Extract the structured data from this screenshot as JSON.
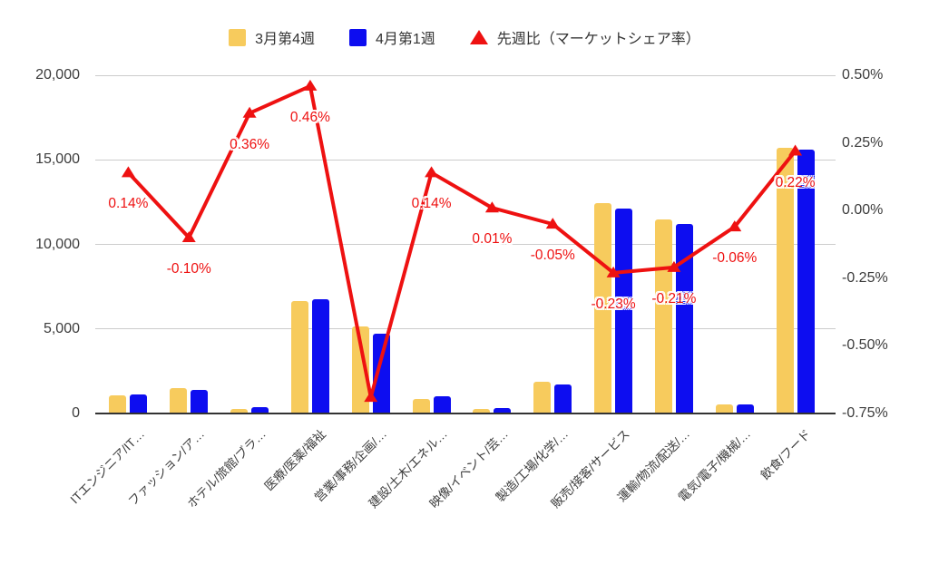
{
  "legend": {
    "items": [
      {
        "label": "3月第4週",
        "marker": "square",
        "color": "#F7CB5D"
      },
      {
        "label": "4月第1週",
        "marker": "square",
        "color": "#0D0DF0"
      },
      {
        "label": "先週比（マーケットシェア率）",
        "marker": "triangle",
        "color": "#EE1111"
      }
    ]
  },
  "chart_data": {
    "type": "bar",
    "subtype": "grouped-bars-with-line-combo",
    "categories": [
      "ITエンジニア/IT…",
      "ファッション/ア…",
      "ホテル/旅館/ブラ…",
      "医療/医薬/福祉",
      "営業/事務/企画/…",
      "建設/土木/エネル…",
      "映像/イベント/芸…",
      "製造/工場/化学/…",
      "販売/接客/サービス",
      "運輸/物流/配送/…",
      "電気/電子/機械/…",
      "飲食/フード"
    ],
    "series": [
      {
        "name": "3月第4週",
        "type": "bar",
        "axis": "left",
        "color": "#F7CB5D",
        "values": [
          1050,
          1500,
          250,
          6650,
          5150,
          850,
          250,
          1850,
          12450,
          11450,
          550,
          15700
        ]
      },
      {
        "name": "4月第1週",
        "type": "bar",
        "axis": "left",
        "color": "#0D0DF0",
        "values": [
          1100,
          1400,
          400,
          6750,
          4700,
          1000,
          300,
          1700,
          12100,
          11200,
          550,
          15600
        ]
      },
      {
        "name": "先週比（マーケットシェア率）",
        "type": "line",
        "axis": "right",
        "color": "#EE1111",
        "values": [
          0.14,
          -0.1,
          0.36,
          0.46,
          -0.69,
          0.14,
          0.01,
          -0.05,
          -0.23,
          -0.21,
          -0.06,
          0.22
        ],
        "point_labels": [
          "0.14%",
          "-0.10%",
          "0.36%",
          "0.46%",
          "",
          "0.14%",
          "0.01%",
          "-0.05%",
          "-0.23%",
          "-0.21%",
          "-0.06%",
          "0.22%"
        ]
      }
    ],
    "left_axis": {
      "tick_labels": [
        "20,000",
        "15,000",
        "10,000",
        "5,000",
        "0"
      ],
      "tick_values": [
        20000,
        15000,
        10000,
        5000,
        0
      ],
      "min": 0,
      "max": 20000
    },
    "right_axis": {
      "tick_labels": [
        "0.50%",
        "0.25%",
        "0.00%",
        "-0.25%",
        "-0.50%",
        "-0.75%"
      ],
      "tick_values": [
        0.5,
        0.25,
        0.0,
        -0.25,
        -0.5,
        -0.75
      ],
      "min": -0.75,
      "max": 0.5
    },
    "title": "",
    "xlabel": "",
    "ylabel": "",
    "grid": true,
    "legend_position": "top"
  },
  "colors": {
    "bar_series_1": "#F7CB5D",
    "bar_series_2": "#0D0DF0",
    "line_series": "#EE1111",
    "gridline": "#CCCCCC",
    "axis_line": "#333333",
    "axis_text": "#3C3C3C",
    "background": "#FFFFFF"
  }
}
